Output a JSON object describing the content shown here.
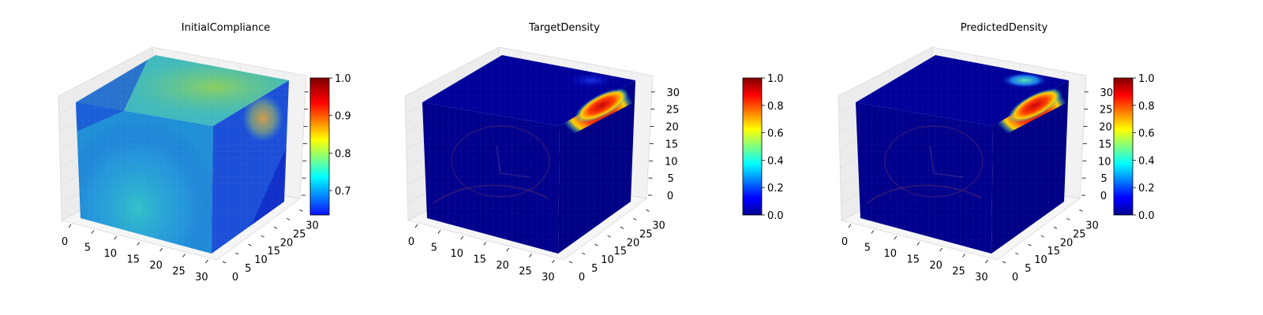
{
  "figure": {
    "panel_count": 3
  },
  "chart_data": [
    {
      "type": "heatmap",
      "subtype": "3d-voxel-cube",
      "title": "InitialCompliance",
      "colormap": "jet",
      "x": {
        "ticks": [
          0,
          5,
          10,
          15,
          20,
          25,
          30
        ],
        "range": [
          0,
          32
        ]
      },
      "y": {
        "ticks": [
          0,
          5,
          10,
          15,
          20,
          25,
          30
        ],
        "range": [
          0,
          32
        ]
      },
      "z": {
        "ticks": [],
        "range": [
          0,
          32
        ]
      },
      "colorbar": {
        "ticks": [
          "0.7",
          "0.8",
          "0.9",
          "1.0"
        ],
        "tick_values": [
          0.7,
          0.8,
          0.9,
          1.0
        ],
        "range": [
          0.635,
          1.0
        ]
      },
      "colors": {
        "front_base": "#1f8fd6",
        "side_base": "#1c4fd8",
        "top_base": "#3fb6c4",
        "highlight": "#d8a43a"
      }
    },
    {
      "type": "heatmap",
      "subtype": "3d-voxel-cube",
      "title": "TargetDensity",
      "colormap": "jet",
      "x": {
        "ticks": [
          0,
          5,
          10,
          15,
          20,
          25,
          30
        ],
        "range": [
          0,
          32
        ]
      },
      "y": {
        "ticks": [
          0,
          5,
          10,
          15,
          20,
          25,
          30
        ],
        "range": [
          0,
          32
        ]
      },
      "z": {
        "ticks": [
          0,
          5,
          10,
          15,
          20,
          25,
          30
        ],
        "range": [
          0,
          32
        ]
      },
      "colorbar": {
        "ticks": [
          "0.0",
          "0.2",
          "0.4",
          "0.6",
          "0.8",
          "1.0"
        ],
        "tick_values": [
          0,
          0.2,
          0.4,
          0.6,
          0.8,
          1.0
        ],
        "range": [
          0,
          1.0
        ]
      },
      "colors": {
        "front_base": "#00008c",
        "side_base": "#000086",
        "top_base": "#00009a",
        "highlight": "#d63a1a"
      }
    },
    {
      "type": "heatmap",
      "subtype": "3d-voxel-cube",
      "title": "PredictedDensity",
      "colormap": "jet",
      "x": {
        "ticks": [
          0,
          5,
          10,
          15,
          20,
          25,
          30
        ],
        "range": [
          0,
          32
        ]
      },
      "y": {
        "ticks": [
          0,
          5,
          10,
          15,
          20,
          25,
          30
        ],
        "range": [
          0,
          32
        ]
      },
      "z": {
        "ticks": [
          0,
          5,
          10,
          15,
          20,
          25,
          30
        ],
        "range": [
          0,
          32
        ]
      },
      "colorbar": {
        "ticks": [
          "0.0",
          "0.2",
          "0.4",
          "0.6",
          "0.8",
          "1.0"
        ],
        "tick_values": [
          0,
          0.2,
          0.4,
          0.6,
          0.8,
          1.0
        ],
        "range": [
          0,
          1.0
        ]
      },
      "colors": {
        "front_base": "#00008c",
        "side_base": "#000086",
        "top_base": "#00009a",
        "highlight": "#d63a1a"
      }
    }
  ]
}
